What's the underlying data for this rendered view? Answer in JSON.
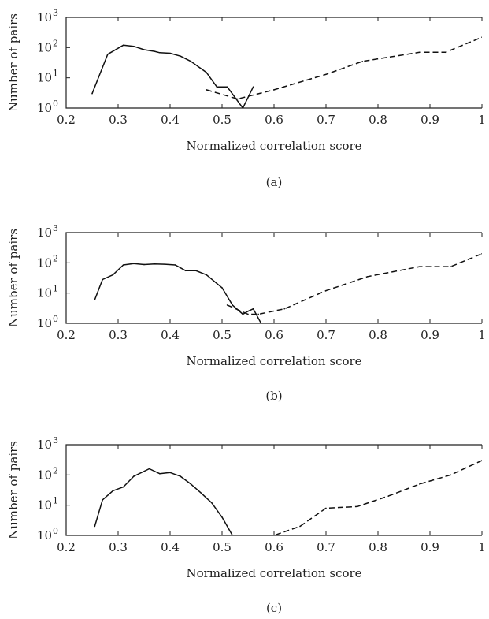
{
  "chart_data": [
    {
      "type": "line",
      "panel_label": "(a)",
      "xlabel": "Normalized correlation score",
      "ylabel": "Number of pairs",
      "xlim": [
        0.2,
        1
      ],
      "ylim": [
        1,
        1000
      ],
      "yscale": "log",
      "xticks": [
        "0.2",
        "0.3",
        "0.4",
        "0.5",
        "0.6",
        "0.7",
        "0.8",
        "0.9",
        "1"
      ],
      "yticks": [
        "10",
        "10",
        "10",
        "10"
      ],
      "ytick_exponents": [
        "0",
        "1",
        "2",
        "3"
      ],
      "grid": false,
      "series": [
        {
          "style": "solid",
          "x": [
            0.25,
            0.28,
            0.31,
            0.33,
            0.35,
            0.37,
            0.38,
            0.4,
            0.42,
            0.44,
            0.47,
            0.49,
            0.51,
            0.54,
            0.56
          ],
          "y": [
            3,
            60,
            120,
            110,
            85,
            75,
            68,
            65,
            52,
            35,
            15,
            5,
            5,
            1,
            5
          ]
        },
        {
          "style": "dashed",
          "x": [
            0.47,
            0.53,
            0.6,
            0.7,
            0.77,
            0.88,
            0.93,
            1.0
          ],
          "y": [
            4,
            2,
            4,
            13,
            35,
            70,
            70,
            220
          ]
        }
      ]
    },
    {
      "type": "line",
      "panel_label": "(b)",
      "xlabel": "Normalized correlation score",
      "ylabel": "Number of pairs",
      "xlim": [
        0.2,
        1
      ],
      "ylim": [
        1,
        1000
      ],
      "yscale": "log",
      "xticks": [
        "0.2",
        "0.3",
        "0.4",
        "0.5",
        "0.6",
        "0.7",
        "0.8",
        "0.9",
        "1"
      ],
      "yticks": [
        "10",
        "10",
        "10",
        "10"
      ],
      "ytick_exponents": [
        "0",
        "1",
        "2",
        "3"
      ],
      "grid": false,
      "series": [
        {
          "style": "solid",
          "x": [
            0.255,
            0.27,
            0.29,
            0.31,
            0.33,
            0.35,
            0.37,
            0.39,
            0.41,
            0.43,
            0.45,
            0.47,
            0.5,
            0.52,
            0.54,
            0.55,
            0.56,
            0.58
          ],
          "y": [
            6,
            28,
            40,
            85,
            95,
            88,
            92,
            90,
            85,
            55,
            55,
            40,
            15,
            4,
            2,
            2.5,
            3,
            0.7
          ]
        },
        {
          "style": "dashed",
          "x": [
            0.51,
            0.55,
            0.57,
            0.62,
            0.7,
            0.78,
            0.88,
            0.94,
            1.0
          ],
          "y": [
            4,
            2,
            2,
            3,
            12,
            35,
            75,
            75,
            200
          ]
        }
      ]
    },
    {
      "type": "line",
      "panel_label": "(c)",
      "xlabel": "Normalized correlation score",
      "ylabel": "Number of pairs",
      "xlim": [
        0.2,
        1
      ],
      "ylim": [
        1,
        1000
      ],
      "yscale": "log",
      "xticks": [
        "0.2",
        "0.3",
        "0.4",
        "0.5",
        "0.6",
        "0.7",
        "0.8",
        "0.9",
        "1"
      ],
      "yticks": [
        "10",
        "10",
        "10",
        "10"
      ],
      "ytick_exponents": [
        "0",
        "1",
        "2",
        "3"
      ],
      "grid": false,
      "series": [
        {
          "style": "solid",
          "x": [
            0.255,
            0.27,
            0.29,
            0.31,
            0.33,
            0.36,
            0.38,
            0.4,
            0.42,
            0.44,
            0.46,
            0.48,
            0.5,
            0.52
          ],
          "y": [
            2,
            15,
            30,
            40,
            90,
            160,
            110,
            120,
            90,
            50,
            25,
            12,
            4,
            1
          ]
        },
        {
          "style": "dashed",
          "x": [
            0.52,
            0.6,
            0.65,
            0.7,
            0.76,
            0.82,
            0.88,
            0.94,
            1.0
          ],
          "y": [
            1,
            1,
            2,
            8,
            9,
            20,
            50,
            100,
            300
          ]
        }
      ]
    }
  ]
}
